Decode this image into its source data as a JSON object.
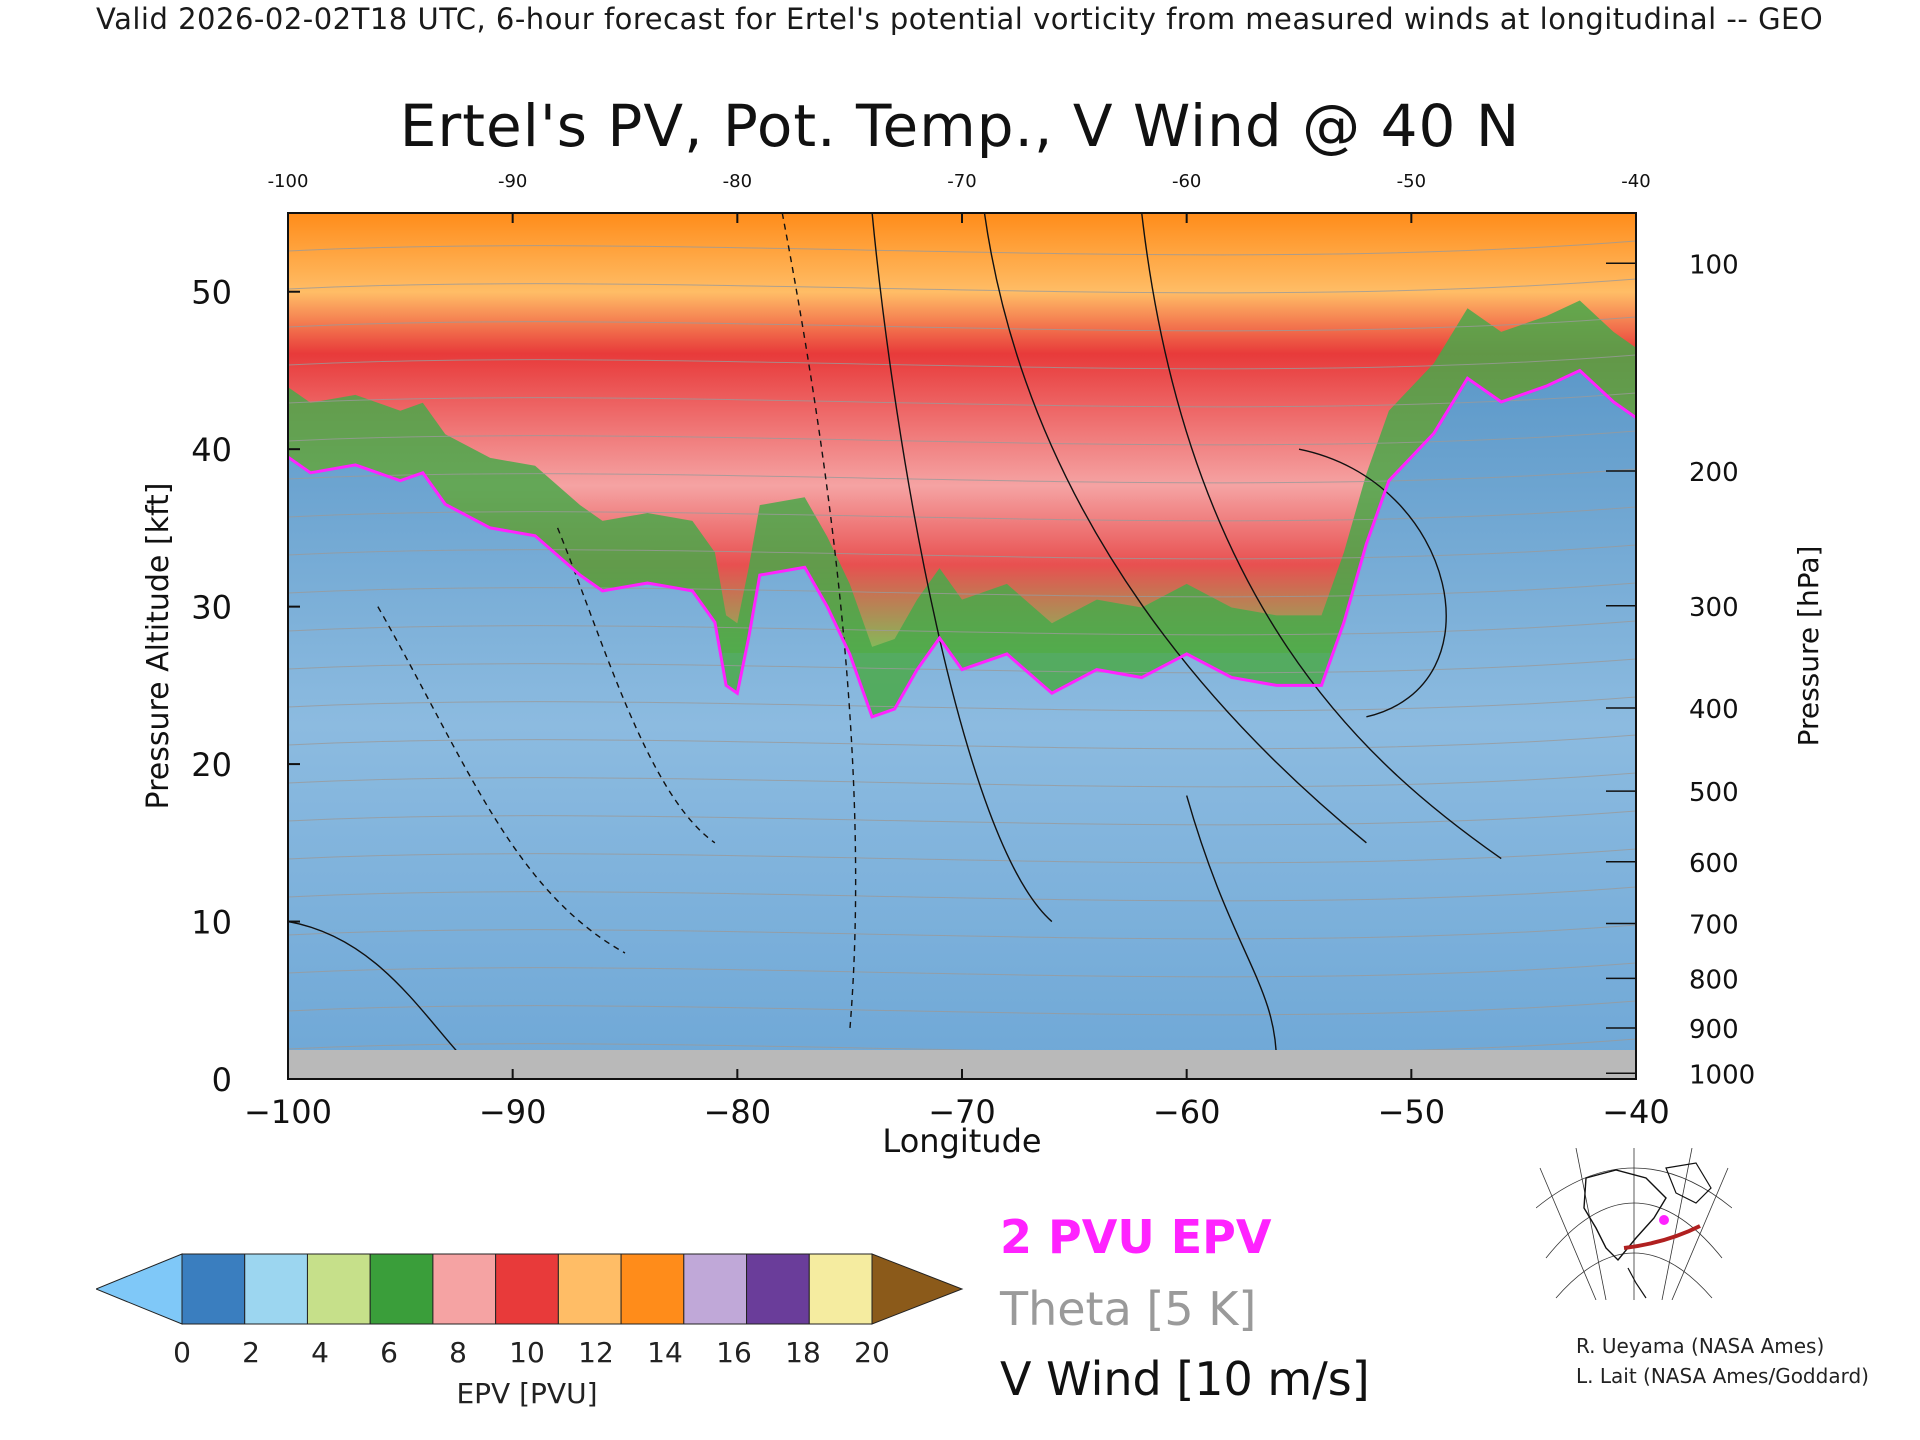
{
  "header": {
    "top_line": "Valid 2026-02-02T18 UTC, 6-hour forecast for Ertel's potential vorticity from measured winds at longitudinal -- GEO",
    "title": "Ertel's PV, Pot. Temp., V Wind @ 40 N"
  },
  "chart_data": {
    "type": "heatmap",
    "title": "Ertel's PV, Pot. Temp., V Wind @ 40 N",
    "xlabel": "Longitude",
    "ylabel": "Pressure Altitude [kft]",
    "y2label": "Pressure [hPa]",
    "xlim": [
      -100,
      -40
    ],
    "ylim": [
      0,
      55
    ],
    "x_ticks": [
      -100,
      -90,
      -80,
      -70,
      -60,
      -50,
      -40
    ],
    "x_tick_labels": [
      "−100",
      "−90",
      "−80",
      "−70",
      "−60",
      "−50",
      "−40"
    ],
    "top_tick_labels": [
      "-100",
      "-90",
      "-80",
      "-70",
      "-60",
      "-50",
      "-40"
    ],
    "y_ticks": [
      0,
      10,
      20,
      30,
      40,
      50
    ],
    "pressure_ticks": [
      {
        "hPa": 100,
        "label": "100"
      },
      {
        "hPa": 200,
        "label": "200"
      },
      {
        "hPa": 300,
        "label": "300"
      },
      {
        "hPa": 400,
        "label": "400"
      },
      {
        "hPa": 500,
        "label": "500"
      },
      {
        "hPa": 600,
        "label": "600"
      },
      {
        "hPa": 700,
        "label": "700"
      },
      {
        "hPa": 800,
        "label": "800"
      },
      {
        "hPa": 900,
        "label": "900"
      },
      {
        "hPa": 1000,
        "label": "1000"
      }
    ],
    "tropopause_2pvu_kft": [
      [
        -100,
        39.5
      ],
      [
        -99,
        38.5
      ],
      [
        -97,
        39
      ],
      [
        -95,
        38
      ],
      [
        -94,
        38.5
      ],
      [
        -93,
        36.5
      ],
      [
        -91,
        35
      ],
      [
        -89,
        34.5
      ],
      [
        -87,
        32
      ],
      [
        -86,
        31
      ],
      [
        -84,
        31.5
      ],
      [
        -82,
        31
      ],
      [
        -81,
        29
      ],
      [
        -80.5,
        25
      ],
      [
        -80,
        24.5
      ],
      [
        -79.5,
        28
      ],
      [
        -79,
        32
      ],
      [
        -77,
        32.5
      ],
      [
        -76,
        30
      ],
      [
        -75,
        27
      ],
      [
        -74,
        23
      ],
      [
        -73,
        23.5
      ],
      [
        -72,
        26
      ],
      [
        -71,
        28
      ],
      [
        -70,
        26
      ],
      [
        -68,
        27
      ],
      [
        -66,
        24.5
      ],
      [
        -64,
        26
      ],
      [
        -62,
        25.5
      ],
      [
        -60,
        27
      ],
      [
        -58,
        25.5
      ],
      [
        -56,
        25
      ],
      [
        -54,
        25
      ],
      [
        -53,
        29
      ],
      [
        -52,
        34
      ],
      [
        -51,
        38
      ],
      [
        -49,
        41
      ],
      [
        -47.5,
        44.5
      ],
      [
        -46,
        43
      ],
      [
        -44,
        44
      ],
      [
        -42.5,
        45
      ],
      [
        -41,
        43
      ],
      [
        -40,
        42
      ]
    ],
    "pv_regions_kft": [
      {
        "name": "stratosphere",
        "level_pvu": 11,
        "top_kft": 55
      },
      {
        "name": "green band",
        "level_pvu": 5
      }
    ],
    "wind_contours_ms": [
      -30,
      -10,
      0,
      10,
      30,
      50
    ],
    "theta_interval_K": 5,
    "colorbar": {
      "label": "EPV [PVU]",
      "ticks": [
        "0",
        "2",
        "4",
        "6",
        "8",
        "10",
        "12",
        "14",
        "16",
        "18",
        "20"
      ],
      "colors": [
        "#3a7ebf",
        "#9cd6f0",
        "#c6e08a",
        "#3a9e3a",
        "#f5a3a3",
        "#e83a3a",
        "#ffbd66",
        "#ff8c1a",
        "#c0a8d8",
        "#6a3d9a",
        "#f5eca0"
      ],
      "under_color": "#7fc8f8",
      "over_color": "#8b5a1a"
    }
  },
  "legend": {
    "pvu_label": "2 PVU EPV",
    "theta_label": "Theta [5 K]",
    "wind_label": "V Wind [10 m/s]",
    "pvu_color": "#ff22ff",
    "theta_color": "#9a9a9a"
  },
  "inset": {
    "description_icon": "globe-map-icon"
  },
  "credits": {
    "line1": "R. Ueyama (NASA Ames)",
    "line2": "L. Lait (NASA Ames/Goddard)"
  }
}
